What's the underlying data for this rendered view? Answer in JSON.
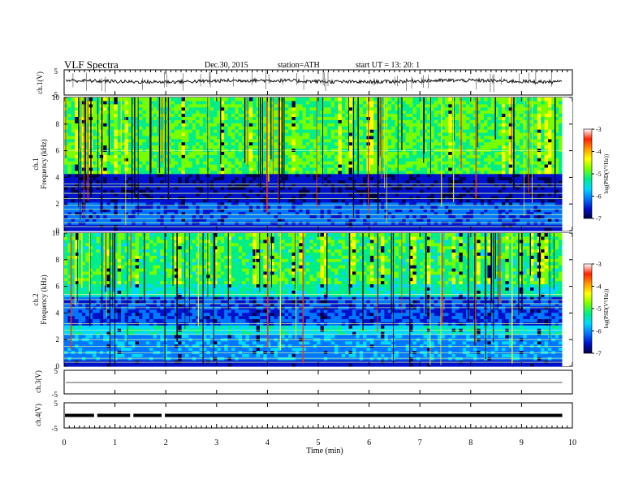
{
  "header": {
    "title": "VLF  Spectra",
    "date": "Dec.30, 2015",
    "station": "station=ATH",
    "start": "start  UT  =    13: 20: 1"
  },
  "colorbar": {
    "label": "log(PSD(V²/Hz))",
    "ticks": [
      "-3",
      "-4",
      "-5",
      "-6",
      "-7"
    ],
    "stops": [
      "#ffffff",
      "#ff2200",
      "#ff9900",
      "#ffff00",
      "#77ff00",
      "#00ee88",
      "#00d8ff",
      "#0077ff",
      "#0011cc",
      "#000044"
    ]
  },
  "panels": {
    "ch1": {
      "ylabel": "ch.1(V)",
      "yticks": [
        "5",
        "-5"
      ]
    },
    "spec1": {
      "ylabel_top": "ch.1",
      "ylabel": "Frequency  (kHz)",
      "yticks": [
        "10",
        "8",
        "6",
        "4",
        "2",
        "0"
      ]
    },
    "spec2": {
      "ylabel_top": "ch.2",
      "ylabel": "Frequency  (kHz)",
      "yticks": [
        "10",
        "8",
        "6",
        "4",
        "2",
        "0"
      ]
    },
    "ch3": {
      "ylabel": "ch.3(V)",
      "yticks": [
        "5",
        "-5"
      ]
    },
    "ch4": {
      "ylabel": "ch.4(V)",
      "yticks": [
        "5",
        "-5"
      ]
    }
  },
  "chart_data": {
    "type": "heatmap",
    "title": "VLF  Spectra",
    "xlabel": "Time  (min)",
    "xlim": [
      0,
      10
    ],
    "xticks": [
      "0",
      "1",
      "2",
      "3",
      "4",
      "5",
      "6",
      "7",
      "8",
      "9",
      "10"
    ],
    "data_end_min": 9.8,
    "frequency_khz_range": [
      0,
      10
    ],
    "psd_log_range": [
      -7,
      -3
    ],
    "waveform_ylim_v": [
      -5,
      5
    ],
    "ch1_waveform_level_v": 0.5,
    "ch3_waveform_level_v": 0.0,
    "ch4_waveform_level_v": 0.0,
    "ch4_gaps_min": [
      0.62,
      1.33,
      1.95
    ]
  }
}
